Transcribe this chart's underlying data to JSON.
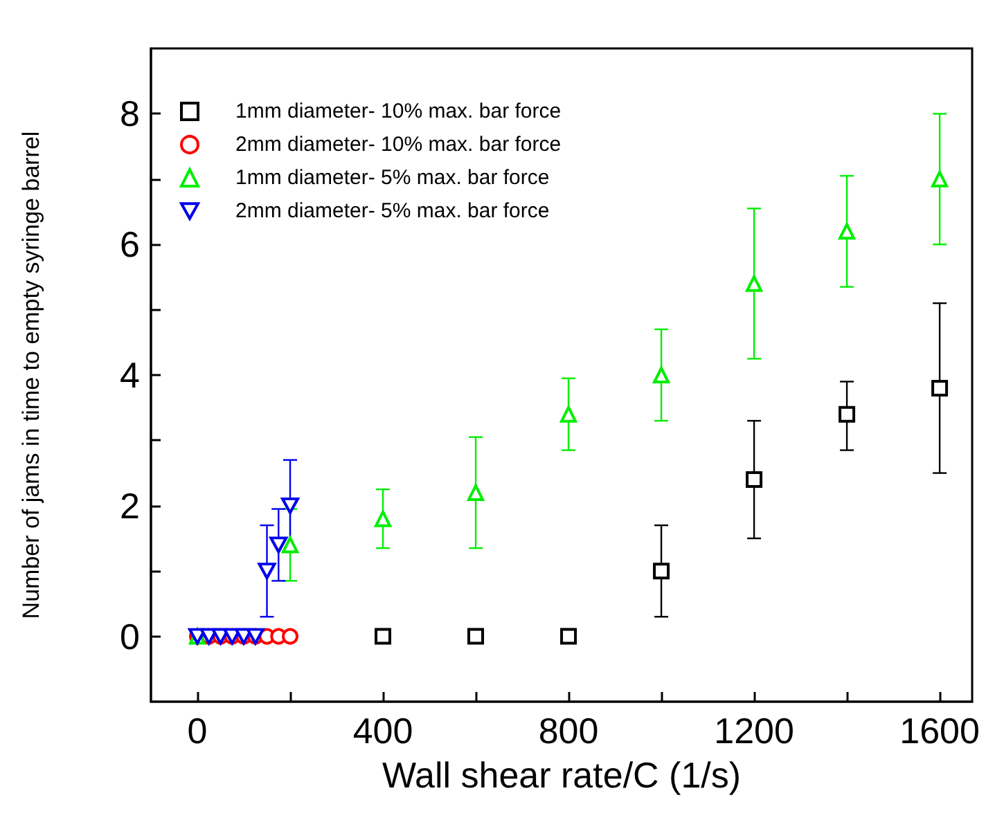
{
  "chart_data": {
    "type": "scatter",
    "xlabel": "Wall shear rate/C (1/s)",
    "ylabel": "Number of jams in time to empty syringe barrel",
    "xlim": [
      -100,
      1670
    ],
    "xticks": [
      0,
      {
        "value": 200,
        "label": null
      },
      400,
      {
        "value": 600,
        "label": null
      },
      800,
      {
        "value": 1000,
        "label": null
      },
      1200,
      {
        "value": 1400,
        "label": null
      },
      1600
    ],
    "ylim": [
      -1,
      9
    ],
    "yticks": [
      0,
      {
        "value": 1,
        "label": null
      },
      2,
      {
        "value": 3,
        "label": null
      },
      4,
      {
        "value": 5,
        "label": null
      },
      6,
      {
        "value": 7,
        "label": null
      },
      8
    ],
    "legend": "top left",
    "series": [
      {
        "name": "1mm diameter- 10% max. bar force",
        "color": "#000000",
        "marker": "square",
        "x": [
          400,
          600,
          800,
          1000,
          1200,
          1400,
          1600
        ],
        "values": [
          0,
          0,
          0,
          1.0,
          2.4,
          3.4,
          3.8
        ],
        "errors": [
          null,
          null,
          null,
          [
            0.3,
            1.7
          ],
          [
            1.5,
            3.3
          ],
          [
            2.85,
            3.9
          ],
          [
            2.5,
            5.1
          ]
        ]
      },
      {
        "name": "2mm diameter- 10% max. bar force",
        "color": "#ff0000",
        "marker": "circle",
        "x": [
          0,
          25,
          50,
          75,
          100,
          125,
          150,
          175,
          200
        ],
        "values": [
          0,
          0,
          0,
          0,
          0,
          0,
          0,
          0,
          0
        ]
      },
      {
        "name": "1mm diameter- 5% max. bar force",
        "color": "#00ee00",
        "marker": "triangle",
        "x": [
          0,
          200,
          400,
          600,
          800,
          1000,
          1200,
          1400,
          1600
        ],
        "values": [
          0,
          1.4,
          1.8,
          2.2,
          3.4,
          4.0,
          5.4,
          6.2,
          7.0
        ],
        "errors": [
          null,
          [
            0.85,
            1.95
          ],
          [
            1.35,
            2.25
          ],
          [
            1.35,
            3.05
          ],
          [
            2.85,
            3.95
          ],
          [
            3.3,
            4.7
          ],
          [
            4.25,
            6.55
          ],
          [
            5.35,
            7.05
          ],
          [
            6.0,
            8.0
          ]
        ]
      },
      {
        "name": "2mm diameter- 5% max. bar force",
        "color": "#0000ee",
        "marker": "triangle-down",
        "x": [
          0,
          25,
          50,
          75,
          100,
          125,
          150,
          175,
          200
        ],
        "values": [
          0,
          0,
          0,
          0,
          0,
          0,
          1.0,
          1.4,
          2.0
        ],
        "errors": [
          null,
          null,
          null,
          null,
          null,
          null,
          [
            0.3,
            1.7
          ],
          [
            0.85,
            1.95
          ],
          [
            1.3,
            2.7
          ]
        ]
      }
    ]
  }
}
